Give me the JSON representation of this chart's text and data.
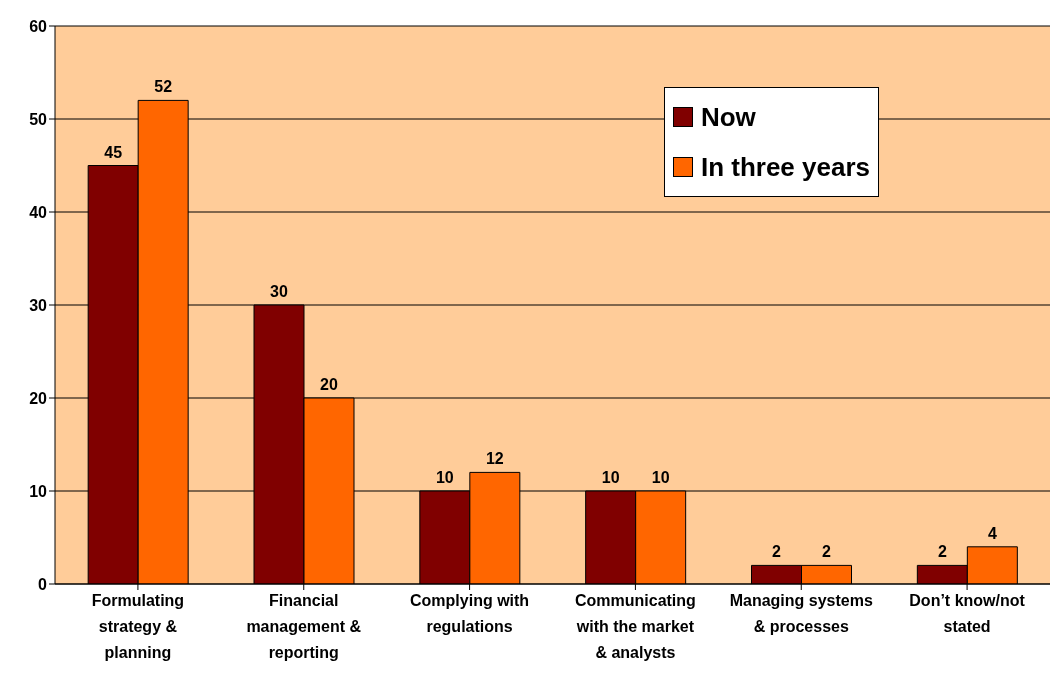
{
  "chart_data": {
    "type": "bar",
    "categories": [
      "Formulating strategy & planning",
      "Financial management & reporting",
      "Complying with regulations",
      "Communicating with the market & analysts",
      "Managing systems & processes",
      "Don’t know/not stated"
    ],
    "series": [
      {
        "name": "Now",
        "color": "#800000",
        "values": [
          45,
          30,
          10,
          10,
          2,
          2
        ]
      },
      {
        "name": "In three years",
        "color": "#ff6600",
        "values": [
          52,
          20,
          12,
          10,
          2,
          4
        ]
      }
    ],
    "ylim": [
      0,
      60
    ],
    "yticks": [
      0,
      10,
      20,
      30,
      40,
      50,
      60
    ],
    "grid": "y",
    "legend": "top right",
    "data_labels": true
  }
}
